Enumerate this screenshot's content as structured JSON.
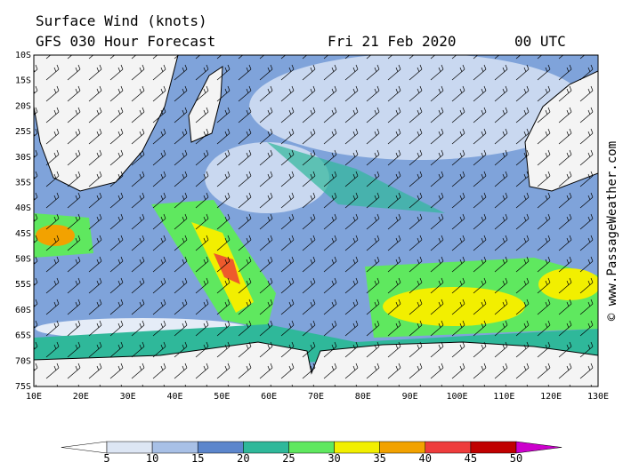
{
  "header": {
    "title": "Surface Wind (knots)",
    "subtitle": "GFS 030 Hour Forecast",
    "date": "Fri 21 Feb 2020",
    "time": "00 UTC"
  },
  "map": {
    "lat_labels": [
      "10S",
      "15S",
      "20S",
      "25S",
      "30S",
      "35S",
      "40S",
      "45S",
      "50S",
      "55S",
      "60S",
      "65S",
      "70S",
      "75S"
    ],
    "lon_labels": [
      "10E",
      "20E",
      "30E",
      "40E",
      "50E",
      "60E",
      "70E",
      "80E",
      "90E",
      "100E",
      "110E",
      "120E",
      "130E"
    ]
  },
  "colorbar": {
    "levels": [
      5,
      10,
      15,
      20,
      25,
      30,
      35,
      40,
      45,
      50
    ],
    "colors": [
      "#ffffff",
      "#dde6f4",
      "#a8c0e6",
      "#5c86cc",
      "#2fb89a",
      "#5fe85f",
      "#f2ef00",
      "#f2a200",
      "#ee3c3c",
      "#c00000",
      "#cc00cc"
    ]
  },
  "credit": "© www.PassageWeather.com"
}
